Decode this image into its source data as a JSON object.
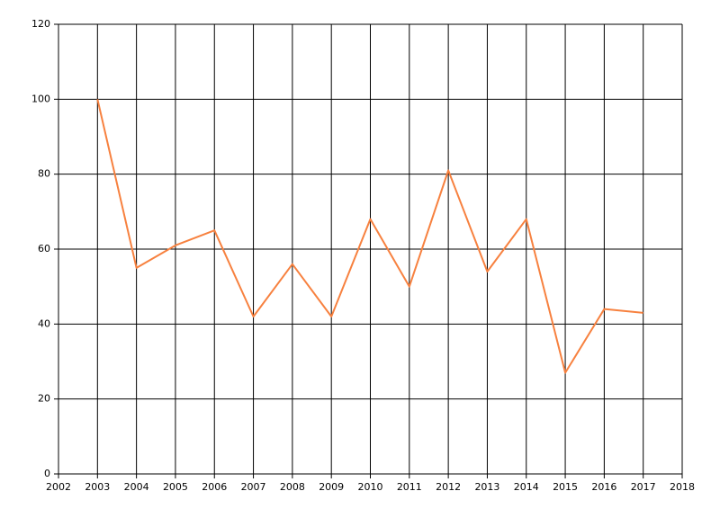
{
  "chart_data": {
    "type": "line",
    "x": [
      2003,
      2004,
      2005,
      2006,
      2007,
      2008,
      2009,
      2010,
      2011,
      2012,
      2013,
      2014,
      2015,
      2016,
      2017
    ],
    "values": [
      100,
      55,
      61,
      65,
      42,
      56,
      42,
      68,
      50,
      81,
      54,
      68,
      27,
      44,
      43
    ],
    "color": "#f7813f",
    "xlim": [
      2002,
      2018
    ],
    "xticks": [
      2002,
      2003,
      2004,
      2005,
      2006,
      2007,
      2008,
      2009,
      2010,
      2011,
      2012,
      2013,
      2014,
      2015,
      2016,
      2017,
      2018
    ],
    "ylim": [
      0,
      120
    ],
    "yticks": [
      0,
      20,
      40,
      60,
      80,
      100,
      120
    ],
    "grid": true
  }
}
